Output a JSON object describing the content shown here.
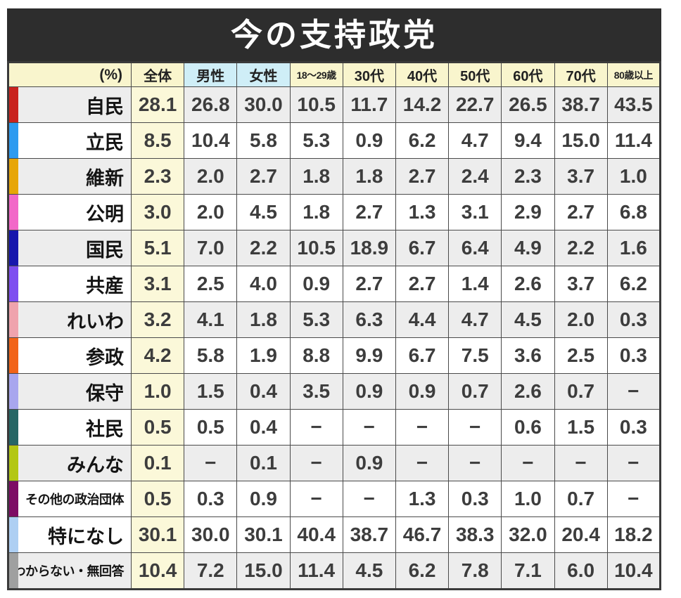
{
  "page": {
    "title": "今の支持政党",
    "unit_label": "(%)"
  },
  "colors": {
    "title_bar_bg": "#2d2d2d",
    "title_text": "#ffffff",
    "header_yellow": "#f9f5cd",
    "header_blue": "#cfeef7",
    "total_column_bg": "#fbf8d9",
    "row_gray": "#ededed",
    "row_white": "#ffffff",
    "grid_border": "#4a4a4a",
    "value_text": "#3d3d3d",
    "label_text": "#141414"
  },
  "chart_data": {
    "type": "table",
    "title": "今の支持政党",
    "unit": "%",
    "corner_label": "(%)",
    "missing_marker": "−",
    "columns": [
      {
        "key": "all",
        "label": "全体",
        "bg": "#f9f5cd",
        "small": false
      },
      {
        "key": "male",
        "label": "男性",
        "bg": "#cfeef7",
        "small": false
      },
      {
        "key": "female",
        "label": "女性",
        "bg": "#cfeef7",
        "small": false
      },
      {
        "key": "age-18-29",
        "label": "18〜29歳",
        "bg": "#f9f5cd",
        "small": true
      },
      {
        "key": "age-30s",
        "label": "30代",
        "bg": "#f9f5cd",
        "small": false
      },
      {
        "key": "age-40s",
        "label": "40代",
        "bg": "#f9f5cd",
        "small": false
      },
      {
        "key": "age-50s",
        "label": "50代",
        "bg": "#f9f5cd",
        "small": false
      },
      {
        "key": "age-60s",
        "label": "60代",
        "bg": "#f9f5cd",
        "small": false
      },
      {
        "key": "age-70s",
        "label": "70代",
        "bg": "#f9f5cd",
        "small": false
      },
      {
        "key": "age-80plus",
        "label": "80歳以上",
        "bg": "#f9f5cd",
        "small": true
      }
    ],
    "rows": [
      {
        "label": "自民",
        "color": "#c9241f",
        "shade": "gray",
        "small": false,
        "values": [
          "28.1",
          "26.8",
          "30.0",
          "10.5",
          "11.7",
          "14.2",
          "22.7",
          "26.5",
          "38.7",
          "43.5"
        ]
      },
      {
        "label": "立民",
        "color": "#2e9bf0",
        "shade": "white",
        "small": false,
        "values": [
          "8.5",
          "10.4",
          "5.8",
          "5.3",
          "0.9",
          "6.2",
          "4.7",
          "9.4",
          "15.0",
          "11.4"
        ]
      },
      {
        "label": "維新",
        "color": "#e7a608",
        "shade": "gray",
        "small": false,
        "values": [
          "2.3",
          "2.0",
          "2.7",
          "1.8",
          "1.8",
          "2.7",
          "2.4",
          "2.3",
          "3.7",
          "1.0"
        ]
      },
      {
        "label": "公明",
        "color": "#f268c8",
        "shade": "white",
        "small": false,
        "values": [
          "3.0",
          "2.0",
          "4.5",
          "1.8",
          "2.7",
          "1.3",
          "3.1",
          "2.9",
          "2.7",
          "6.8"
        ]
      },
      {
        "label": "国民",
        "color": "#1717ad",
        "shade": "gray",
        "small": false,
        "values": [
          "5.1",
          "7.0",
          "2.2",
          "10.5",
          "18.9",
          "6.7",
          "6.4",
          "4.9",
          "2.2",
          "1.6"
        ]
      },
      {
        "label": "共産",
        "color": "#7e4ef0",
        "shade": "white",
        "small": false,
        "values": [
          "3.1",
          "2.5",
          "4.0",
          "0.9",
          "2.7",
          "2.7",
          "1.4",
          "2.6",
          "3.7",
          "6.2"
        ]
      },
      {
        "label": "れいわ",
        "color": "#efa3ad",
        "shade": "gray",
        "small": false,
        "values": [
          "3.2",
          "4.1",
          "1.8",
          "5.3",
          "6.3",
          "4.4",
          "4.7",
          "4.5",
          "2.0",
          "0.3"
        ]
      },
      {
        "label": "参政",
        "color": "#f26418",
        "shade": "white",
        "small": false,
        "values": [
          "4.2",
          "5.8",
          "1.9",
          "8.8",
          "9.9",
          "6.7",
          "7.5",
          "3.6",
          "2.5",
          "0.3"
        ]
      },
      {
        "label": "保守",
        "color": "#a8a6ee",
        "shade": "gray",
        "small": false,
        "values": [
          "1.0",
          "1.5",
          "0.4",
          "3.5",
          "0.9",
          "0.9",
          "0.7",
          "2.6",
          "0.7",
          "−"
        ]
      },
      {
        "label": "社民",
        "color": "#266665",
        "shade": "white",
        "small": false,
        "values": [
          "0.5",
          "0.5",
          "0.4",
          "−",
          "−",
          "−",
          "−",
          "0.6",
          "1.5",
          "0.3"
        ]
      },
      {
        "label": "みんな",
        "color": "#b3c713",
        "shade": "gray",
        "small": false,
        "values": [
          "0.1",
          "−",
          "0.1",
          "−",
          "0.9",
          "−",
          "−",
          "−",
          "−",
          "−"
        ]
      },
      {
        "label": "その他の政治団体",
        "color": "#7d0c65",
        "shade": "white",
        "small": true,
        "values": [
          "0.5",
          "0.3",
          "0.9",
          "−",
          "−",
          "1.3",
          "0.3",
          "1.0",
          "0.7",
          "−"
        ]
      },
      {
        "label": "特になし",
        "color": "#aecff3",
        "shade": "white",
        "small": false,
        "values": [
          "30.1",
          "30.0",
          "30.1",
          "40.4",
          "38.7",
          "46.7",
          "38.3",
          "32.0",
          "20.4",
          "18.2"
        ]
      },
      {
        "label": "わからない・無回答",
        "color": "#9fa0a0",
        "shade": "gray",
        "small": true,
        "values": [
          "10.4",
          "7.2",
          "15.0",
          "11.4",
          "4.5",
          "6.2",
          "7.8",
          "7.1",
          "6.0",
          "10.4"
        ]
      }
    ]
  }
}
